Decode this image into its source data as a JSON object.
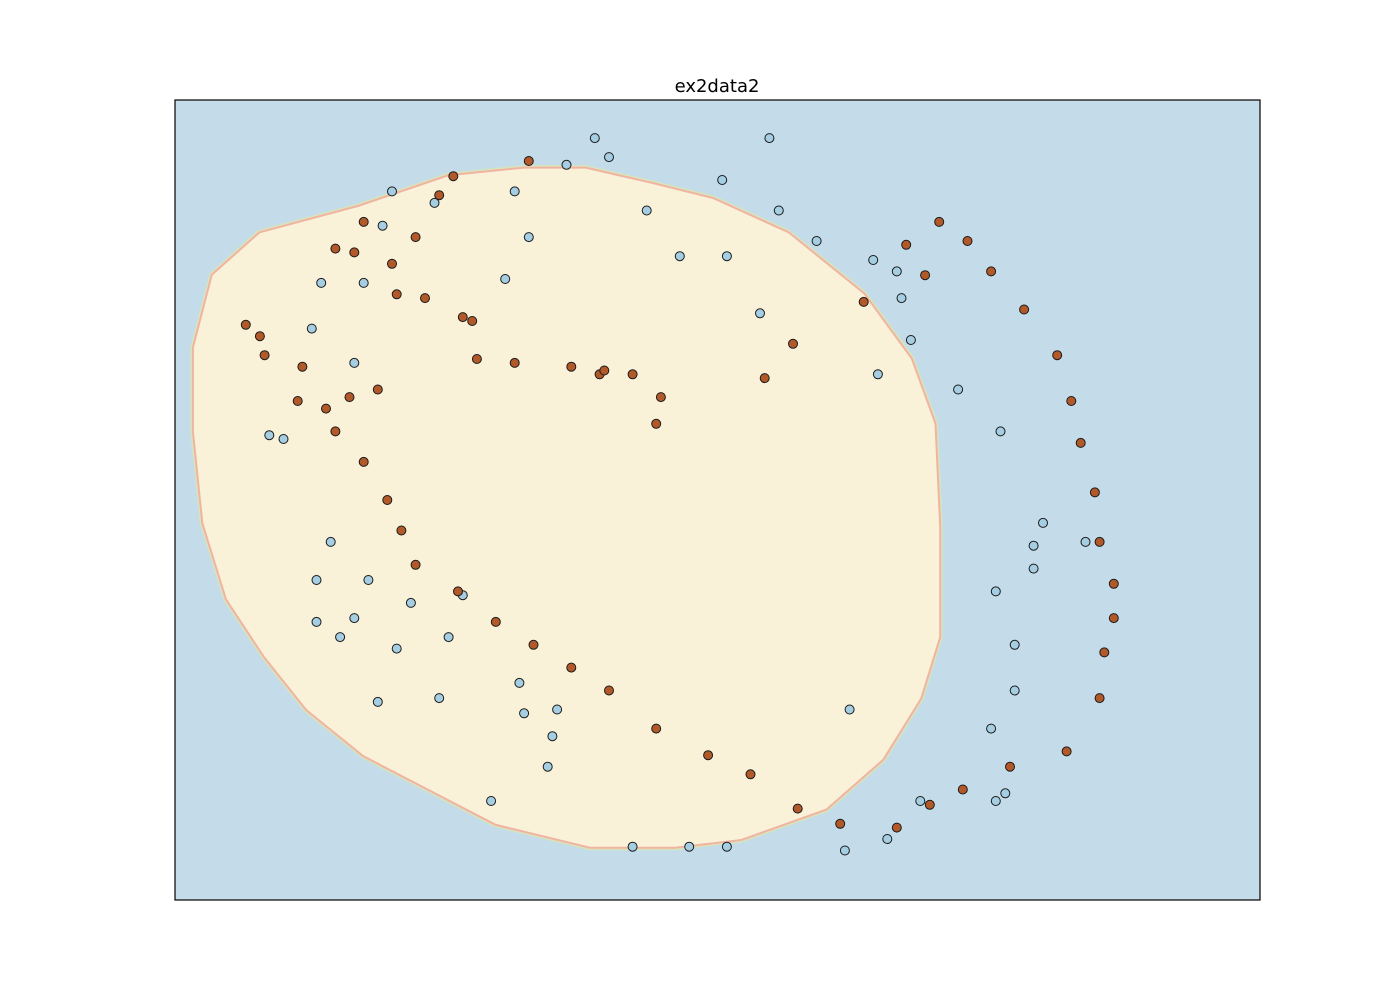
{
  "chart_data": {
    "type": "scatter",
    "title": "ex2data2",
    "xlabel": "",
    "ylabel": "",
    "axes_ticks_visible": false,
    "xlim": [
      -1.0,
      1.3
    ],
    "ylim": [
      -0.9,
      1.2
    ],
    "grid": false,
    "legend": "none",
    "background_region": {
      "label": "",
      "color": "#c4dcea"
    },
    "decision_region": {
      "label": "",
      "fill_color": "#f9f2d9",
      "edge_colors": [
        "#f1b3a3",
        "#d8e4b8"
      ],
      "boundary": [
        [
          -0.61,
          0.92
        ],
        [
          -0.42,
          1.0
        ],
        [
          -0.26,
          1.02
        ],
        [
          -0.13,
          1.02
        ],
        [
          0.01,
          0.98
        ],
        [
          0.14,
          0.94
        ],
        [
          0.3,
          0.85
        ],
        [
          0.46,
          0.69
        ],
        [
          0.56,
          0.52
        ],
        [
          0.61,
          0.35
        ],
        [
          0.62,
          0.08
        ],
        [
          0.62,
          -0.21
        ],
        [
          0.58,
          -0.37
        ],
        [
          0.5,
          -0.53
        ],
        [
          0.38,
          -0.66
        ],
        [
          0.2,
          -0.74
        ],
        [
          0.06,
          -0.76
        ],
        [
          -0.12,
          -0.76
        ],
        [
          -0.32,
          -0.7
        ],
        [
          -0.46,
          -0.61
        ],
        [
          -0.6,
          -0.52
        ],
        [
          -0.72,
          -0.4
        ],
        [
          -0.81,
          -0.26
        ],
        [
          -0.89,
          -0.11
        ],
        [
          -0.94,
          0.09
        ],
        [
          -0.96,
          0.33
        ],
        [
          -0.96,
          0.55
        ],
        [
          -0.92,
          0.74
        ],
        [
          -0.82,
          0.85
        ]
      ]
    },
    "series": [
      {
        "color": "#a6cee3",
        "points": [
          [
            -0.6,
            0.72
          ],
          [
            -0.3,
            0.73
          ],
          [
            -0.62,
            0.51
          ],
          [
            0.07,
            0.79
          ],
          [
            0.17,
            0.79
          ],
          [
            0.24,
            0.64
          ],
          [
            0.26,
            1.1
          ],
          [
            -0.08,
            1.05
          ],
          [
            -0.17,
            1.03
          ],
          [
            -0.11,
            1.1
          ],
          [
            -0.25,
            0.84
          ],
          [
            -0.28,
            0.96
          ],
          [
            -0.54,
            0.96
          ],
          [
            -0.45,
            0.93
          ],
          [
            -0.56,
            0.87
          ],
          [
            -0.69,
            0.72
          ],
          [
            -0.71,
            0.6
          ],
          [
            -0.77,
            0.31
          ],
          [
            -0.8,
            0.32
          ],
          [
            -0.67,
            0.04
          ],
          [
            -0.7,
            -0.06
          ],
          [
            -0.59,
            -0.06
          ],
          [
            -0.5,
            -0.12
          ],
          [
            -0.7,
            -0.17
          ],
          [
            -0.62,
            -0.16
          ],
          [
            -0.53,
            -0.24
          ],
          [
            -0.42,
            -0.21
          ],
          [
            -0.57,
            -0.38
          ],
          [
            -0.44,
            -0.37
          ],
          [
            -0.65,
            -0.21
          ],
          [
            -0.39,
            -0.1
          ],
          [
            -0.27,
            -0.33
          ],
          [
            -0.19,
            -0.4
          ],
          [
            -0.26,
            -0.41
          ],
          [
            -0.2,
            -0.47
          ],
          [
            -0.21,
            -0.55
          ],
          [
            -0.33,
            -0.64
          ],
          [
            -0.03,
            -0.76
          ],
          [
            0.09,
            -0.76
          ],
          [
            0.17,
            -0.76
          ],
          [
            0.43,
            -0.4
          ],
          [
            0.42,
            -0.77
          ],
          [
            0.51,
            -0.74
          ],
          [
            0.58,
            -0.64
          ],
          [
            0.74,
            -0.64
          ],
          [
            0.76,
            -0.62
          ],
          [
            0.73,
            -0.45
          ],
          [
            0.78,
            -0.35
          ],
          [
            0.78,
            -0.23
          ],
          [
            0.74,
            -0.09
          ],
          [
            0.82,
            -0.03
          ],
          [
            0.82,
            0.03
          ],
          [
            0.93,
            0.04
          ],
          [
            0.84,
            0.09
          ],
          [
            0.75,
            0.33
          ],
          [
            0.66,
            0.44
          ],
          [
            0.49,
            0.48
          ],
          [
            0.54,
            0.68
          ],
          [
            0.53,
            0.75
          ],
          [
            0.48,
            0.78
          ],
          [
            0.36,
            0.83
          ],
          [
            0.28,
            0.91
          ],
          [
            0.16,
            0.99
          ],
          [
            -0.0,
            0.91
          ],
          [
            0.56,
            0.57
          ]
        ]
      },
      {
        "color": "#b15928",
        "points": [
          [
            -0.25,
            1.04
          ],
          [
            -0.41,
            1.0
          ],
          [
            -0.44,
            0.95
          ],
          [
            -0.6,
            0.88
          ],
          [
            -0.66,
            0.81
          ],
          [
            -0.62,
            0.8
          ],
          [
            -0.49,
            0.84
          ],
          [
            -0.54,
            0.77
          ],
          [
            -0.47,
            0.68
          ],
          [
            -0.53,
            0.69
          ],
          [
            -0.39,
            0.63
          ],
          [
            -0.37,
            0.62
          ],
          [
            -0.36,
            0.52
          ],
          [
            -0.28,
            0.51
          ],
          [
            -0.16,
            0.5
          ],
          [
            -0.1,
            0.48
          ],
          [
            -0.09,
            0.49
          ],
          [
            -0.03,
            0.48
          ],
          [
            0.03,
            0.42
          ],
          [
            0.02,
            0.35
          ],
          [
            0.25,
            0.47
          ],
          [
            0.31,
            0.56
          ],
          [
            0.46,
            0.67
          ],
          [
            0.59,
            0.74
          ],
          [
            0.55,
            0.82
          ],
          [
            0.62,
            0.88
          ],
          [
            0.68,
            0.83
          ],
          [
            0.73,
            0.75
          ],
          [
            0.8,
            0.65
          ],
          [
            0.87,
            0.53
          ],
          [
            0.9,
            0.41
          ],
          [
            0.92,
            0.3
          ],
          [
            0.95,
            0.17
          ],
          [
            0.96,
            0.04
          ],
          [
            0.99,
            -0.07
          ],
          [
            0.99,
            -0.16
          ],
          [
            0.97,
            -0.25
          ],
          [
            0.96,
            -0.37
          ],
          [
            0.89,
            -0.51
          ],
          [
            0.77,
            -0.55
          ],
          [
            0.67,
            -0.61
          ],
          [
            0.6,
            -0.65
          ],
          [
            0.53,
            -0.71
          ],
          [
            0.41,
            -0.7
          ],
          [
            0.32,
            -0.66
          ],
          [
            0.22,
            -0.57
          ],
          [
            0.13,
            -0.52
          ],
          [
            0.02,
            -0.45
          ],
          [
            -0.08,
            -0.35
          ],
          [
            -0.16,
            -0.29
          ],
          [
            -0.24,
            -0.23
          ],
          [
            -0.32,
            -0.17
          ],
          [
            -0.4,
            -0.09
          ],
          [
            -0.49,
            -0.02
          ],
          [
            -0.52,
            0.07
          ],
          [
            -0.55,
            0.15
          ],
          [
            -0.6,
            0.25
          ],
          [
            -0.66,
            0.33
          ],
          [
            -0.74,
            0.41
          ],
          [
            -0.81,
            0.53
          ],
          [
            -0.82,
            0.58
          ],
          [
            -0.85,
            0.61
          ],
          [
            -0.73,
            0.5
          ],
          [
            -0.68,
            0.39
          ],
          [
            -0.63,
            0.42
          ],
          [
            -0.57,
            0.44
          ]
        ]
      }
    ]
  }
}
